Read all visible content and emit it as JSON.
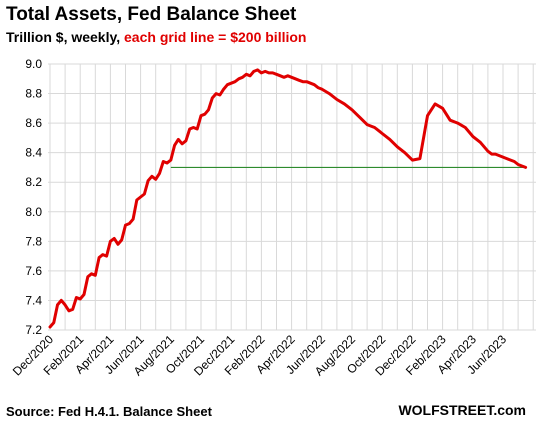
{
  "header": {
    "title": "Total Assets, Fed Balance Sheet",
    "subtitle_prefix": "Trillion $, weekly, ",
    "subtitle_highlight": "each grid line = $200 billion"
  },
  "footer": {
    "source": "Source: Fed H.4.1. Balance Sheet",
    "brand": "WOLFSTREET.com"
  },
  "colors": {
    "line": "#e00000",
    "reference": "#2e8b2e",
    "grid": "#d9d9d9"
  },
  "chart_data": {
    "type": "line",
    "title": "Total Assets, Fed Balance Sheet",
    "ylabel": "Trillion $, weekly",
    "ylim": [
      7.2,
      9.0
    ],
    "yticks": [
      "7.2",
      "7.4",
      "7.6",
      "7.8",
      "8.0",
      "8.2",
      "8.4",
      "8.6",
      "8.8",
      "9.0"
    ],
    "xticks": [
      "Dec/2020",
      "Feb/2021",
      "Apr/2021",
      "Jun/2021",
      "Aug/2021",
      "Oct/2021",
      "Dec/2021",
      "Feb/2022",
      "Apr/2022",
      "Jun/2022",
      "Aug/2022",
      "Oct/2022",
      "Dec/2022",
      "Feb/2023",
      "Apr/2023",
      "Jun/2023"
    ],
    "grid": true,
    "reference_line": {
      "y": 8.3,
      "from_month": 8.0,
      "to_month": 31.5
    },
    "series": [
      {
        "x_months": [
          0.0,
          0.25,
          0.5,
          0.75,
          1.0,
          1.25,
          1.5,
          1.75,
          2.0,
          2.25,
          2.5,
          2.75,
          3.0,
          3.25,
          3.5,
          3.75,
          4.0,
          4.25,
          4.5,
          4.75,
          5.0,
          5.25,
          5.5,
          5.75,
          6.0,
          6.25,
          6.5,
          6.75,
          7.0,
          7.25,
          7.5,
          7.75,
          8.0,
          8.25,
          8.5,
          8.75,
          9.0,
          9.25,
          9.5,
          9.75,
          10.0,
          10.25,
          10.5,
          10.75,
          11.0,
          11.25,
          11.5,
          11.75,
          12.0,
          12.25,
          12.5,
          12.75,
          13.0,
          13.25,
          13.5,
          13.75,
          14.0,
          14.25,
          14.5,
          14.75,
          15.0,
          15.25,
          15.5,
          15.75,
          16.0,
          16.25,
          16.5,
          16.75,
          17.0,
          17.25,
          17.5,
          17.75,
          18.0,
          18.5,
          19.0,
          19.5,
          20.0,
          20.5,
          21.0,
          21.5,
          22.0,
          22.5,
          23.0,
          23.5,
          24.0,
          24.5,
          25.0,
          25.5,
          26.0,
          26.5,
          27.0,
          27.5,
          28.0,
          28.5,
          29.0,
          29.25,
          29.5,
          29.75,
          30.0,
          30.25,
          30.5,
          30.75,
          31.0,
          31.25,
          31.5
        ],
        "values": [
          7.22,
          7.25,
          7.37,
          7.4,
          7.37,
          7.33,
          7.34,
          7.42,
          7.41,
          7.44,
          7.56,
          7.58,
          7.57,
          7.69,
          7.71,
          7.7,
          7.8,
          7.82,
          7.78,
          7.81,
          7.91,
          7.92,
          7.95,
          8.08,
          8.1,
          8.12,
          8.21,
          8.24,
          8.22,
          8.26,
          8.34,
          8.33,
          8.35,
          8.45,
          8.49,
          8.46,
          8.48,
          8.56,
          8.57,
          8.56,
          8.65,
          8.66,
          8.69,
          8.77,
          8.8,
          8.79,
          8.83,
          8.86,
          8.87,
          8.88,
          8.9,
          8.91,
          8.93,
          8.92,
          8.95,
          8.96,
          8.94,
          8.95,
          8.94,
          8.94,
          8.93,
          8.92,
          8.91,
          8.92,
          8.91,
          8.9,
          8.89,
          8.88,
          8.88,
          8.87,
          8.86,
          8.84,
          8.83,
          8.8,
          8.76,
          8.73,
          8.69,
          8.64,
          8.59,
          8.57,
          8.53,
          8.49,
          8.44,
          8.4,
          8.35,
          8.36,
          8.65,
          8.73,
          8.7,
          8.62,
          8.6,
          8.57,
          8.51,
          8.47,
          8.41,
          8.39,
          8.39,
          8.38,
          8.37,
          8.36,
          8.35,
          8.34,
          8.32,
          8.31,
          8.3
        ]
      }
    ]
  }
}
